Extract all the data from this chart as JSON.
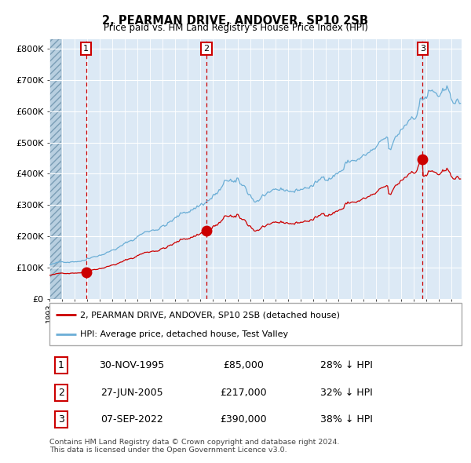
{
  "title": "2, PEARMAN DRIVE, ANDOVER, SP10 2SB",
  "subtitle": "Price paid vs. HM Land Registry's House Price Index (HPI)",
  "hpi_label": "HPI: Average price, detached house, Test Valley",
  "price_label": "2, PEARMAN DRIVE, ANDOVER, SP10 2SB (detached house)",
  "footer1": "Contains HM Land Registry data © Crown copyright and database right 2024.",
  "footer2": "This data is licensed under the Open Government Licence v3.0.",
  "sales": [
    {
      "num": 1,
      "date": "30-NOV-1995",
      "price": 85000,
      "pct": "28%",
      "dir": "↓",
      "x_year": 1995.92
    },
    {
      "num": 2,
      "date": "27-JUN-2005",
      "price": 217000,
      "pct": "32%",
      "dir": "↓",
      "x_year": 2005.49
    },
    {
      "num": 3,
      "date": "07-SEP-2022",
      "price": 390000,
      "pct": "38%",
      "dir": "↓",
      "x_year": 2022.69
    }
  ],
  "ylim": [
    0,
    830000
  ],
  "xlim_start": 1993.0,
  "xlim_end": 2025.8,
  "hpi_color": "#6baed6",
  "price_color": "#cc0000",
  "vline_color": "#cc0000",
  "bg_color": "#dce9f5",
  "grid_color": "#ffffff",
  "label_box_color": "#cc0000",
  "yticks": [
    0,
    100000,
    200000,
    300000,
    400000,
    500000,
    600000,
    700000,
    800000
  ],
  "ytick_labels": [
    "£0",
    "£100K",
    "£200K",
    "£300K",
    "£400K",
    "£500K",
    "£600K",
    "£700K",
    "£800K"
  ]
}
